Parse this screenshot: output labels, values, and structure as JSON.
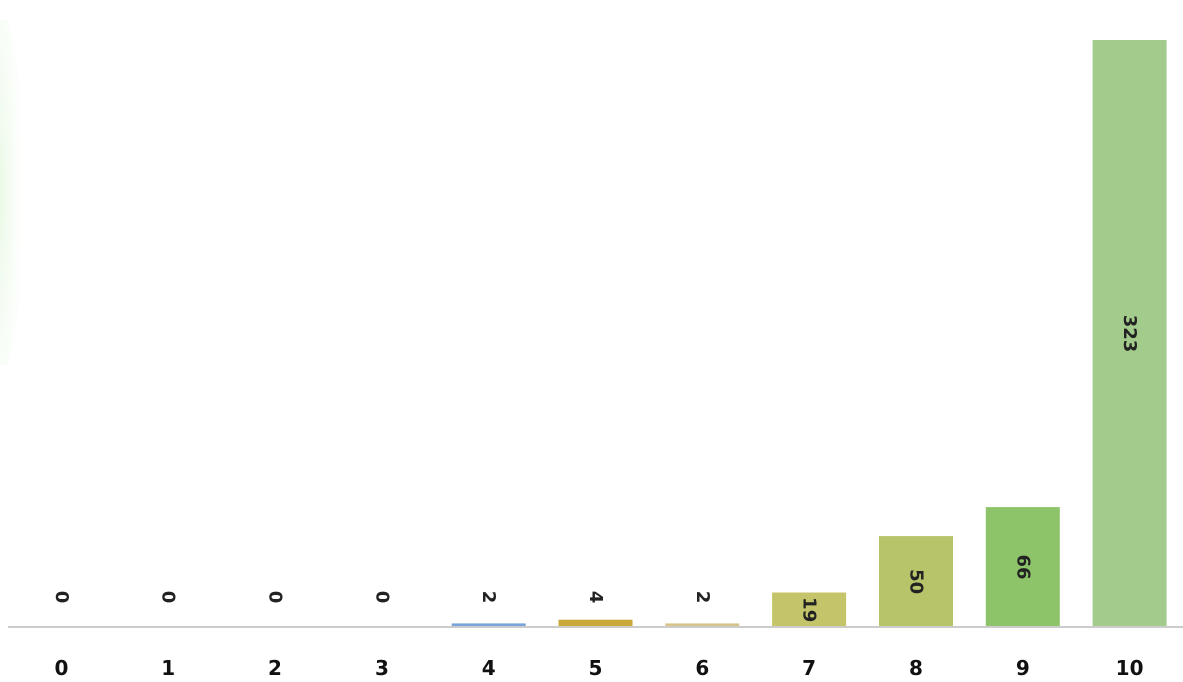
{
  "chart_data": {
    "type": "bar",
    "title": "",
    "xlabel": "",
    "ylabel": "",
    "categories": [
      "0",
      "1",
      "2",
      "3",
      "4",
      "5",
      "6",
      "7",
      "8",
      "9",
      "10"
    ],
    "values": [
      0,
      0,
      0,
      0,
      2,
      4,
      2,
      19,
      50,
      66,
      323
    ],
    "ylim": [
      0,
      323
    ],
    "grid": false,
    "legend": "none",
    "data_labels": {
      "show": true,
      "rotated": true
    },
    "colors": [
      "#6f9fd8",
      "#6f9fd8",
      "#6f9fd8",
      "#6f9fd8",
      "#7aa3d9",
      "#c9a93a",
      "#d8c48a",
      "#c4c46a",
      "#b7c46a",
      "#8dc46a",
      "#a3cc8c"
    ],
    "axis_color": "#cccccc"
  }
}
